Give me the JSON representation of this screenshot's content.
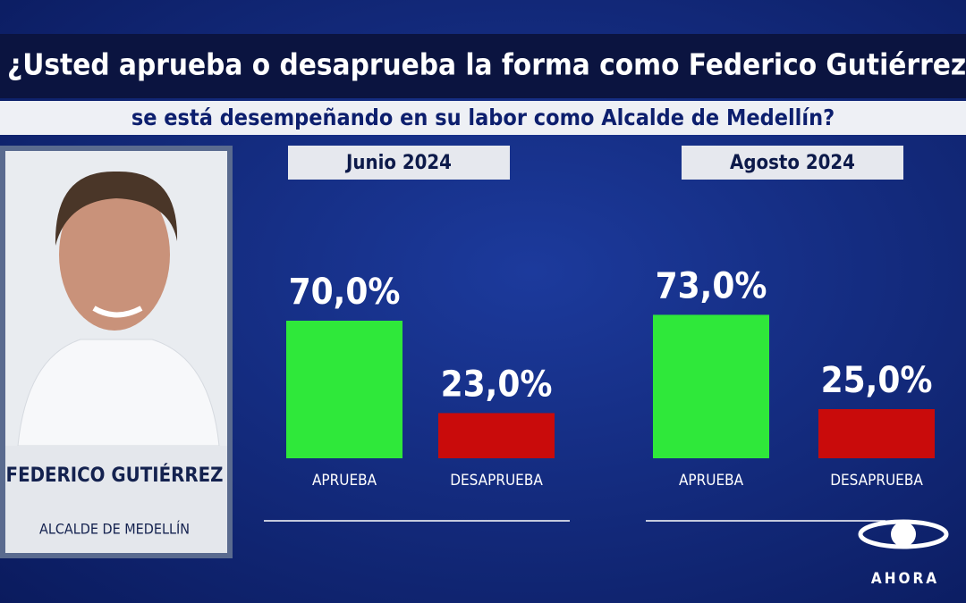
{
  "header": {
    "title": "¿Usted aprueba o desaprueba la forma como Federico Gutiérrez,",
    "subtitle": "se está desempeñando en su labor como Alcalde de Medellín?"
  },
  "profile": {
    "name": "FEDERICO GUTIÉRREZ",
    "role": "ALCALDE DE MEDELLÍN"
  },
  "logo": "AHORA",
  "chart_data": [
    {
      "type": "bar",
      "title": "Junio 2024",
      "categories": [
        "APRUEBA",
        "DESAPRUEBA"
      ],
      "values": [
        70,
        23
      ],
      "value_labels": [
        "70,0%",
        "23,0%"
      ],
      "colors": [
        "#2fe83a",
        "#c90b0b"
      ]
    },
    {
      "type": "bar",
      "title": "Agosto 2024",
      "categories": [
        "APRUEBA",
        "DESAPRUEBA"
      ],
      "values": [
        73,
        25
      ],
      "value_labels": [
        "73,0%",
        "25,0%"
      ],
      "colors": [
        "#2fe83a",
        "#c90b0b"
      ]
    }
  ]
}
